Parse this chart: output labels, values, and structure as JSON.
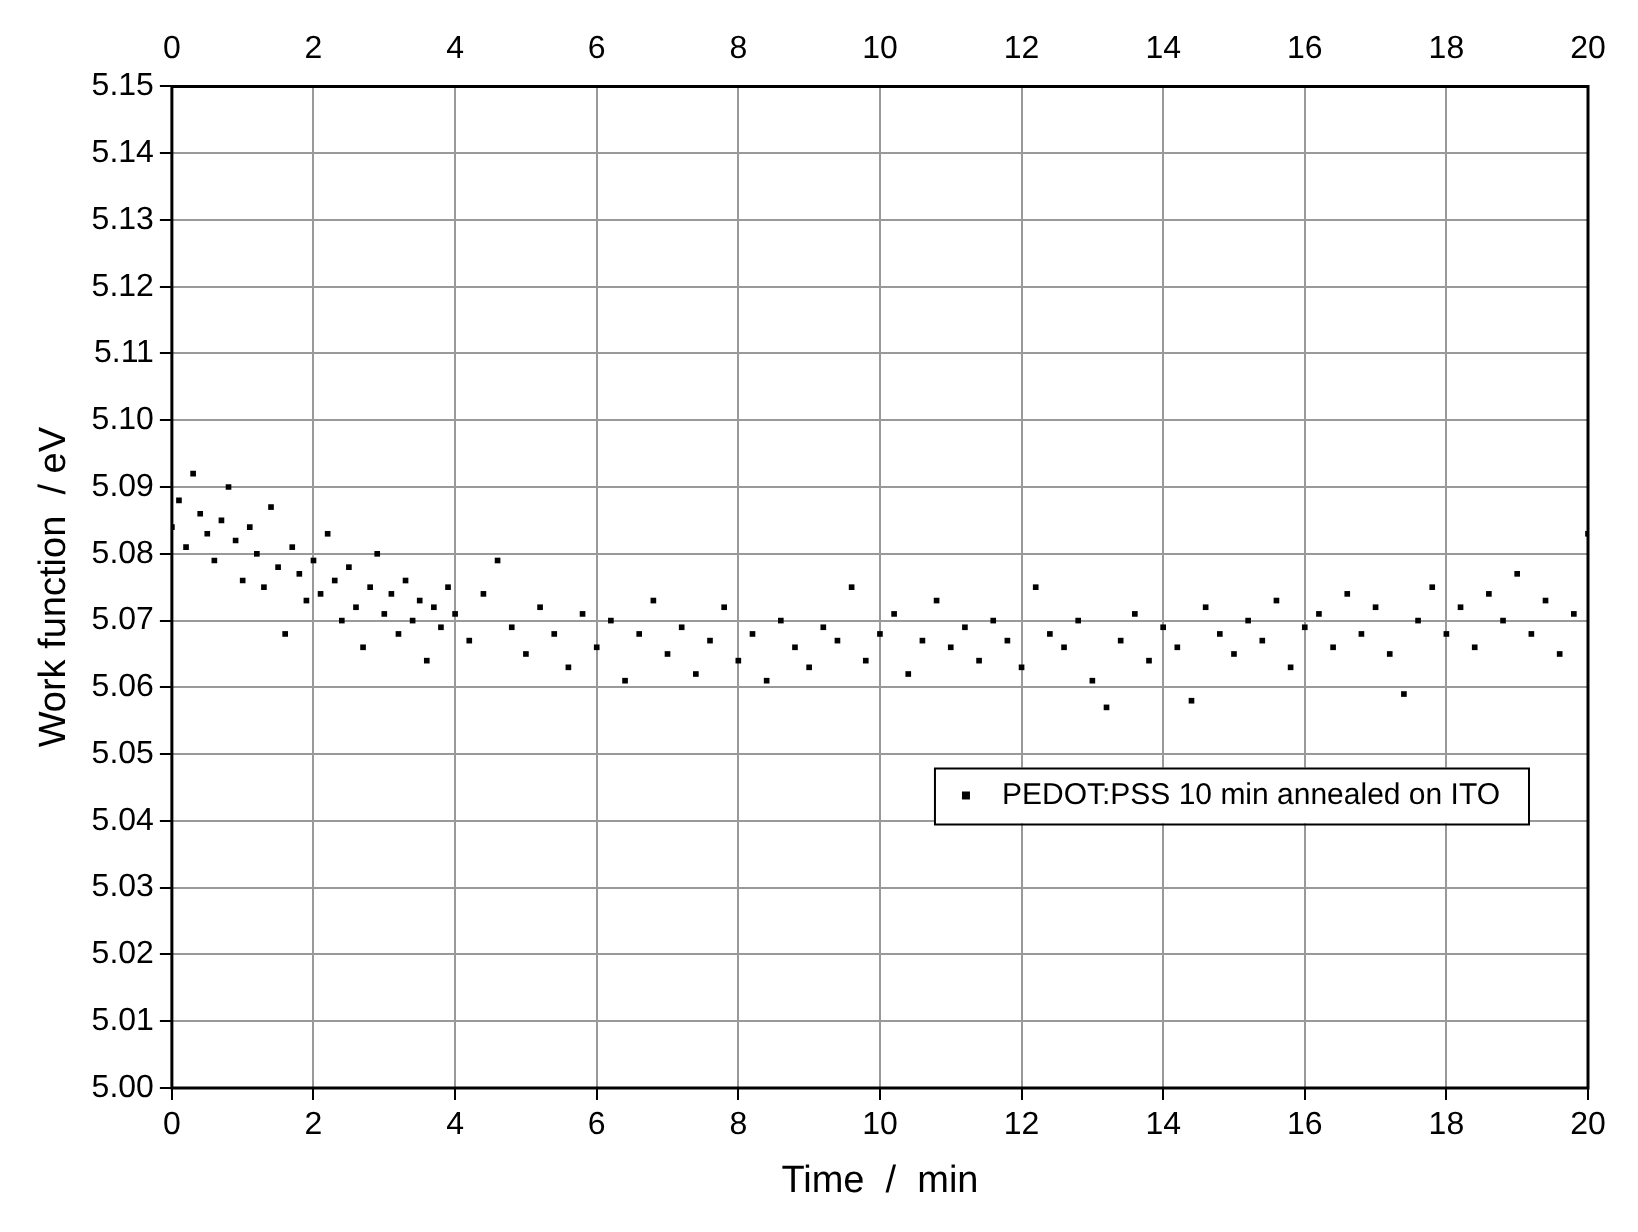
{
  "chart_data": {
    "type": "scatter",
    "xlabel": "Time  /  min",
    "ylabel": "Work function  / eV",
    "xlim": [
      0,
      20
    ],
    "xticks": [
      0,
      2,
      4,
      6,
      8,
      10,
      12,
      14,
      16,
      18,
      20
    ],
    "x2lim": [
      0,
      20
    ],
    "x2ticks": [
      0,
      2,
      4,
      6,
      8,
      10,
      12,
      14,
      16,
      18,
      20
    ],
    "ylim": [
      5.0,
      5.15
    ],
    "yticks": [
      {
        "value": 5.0,
        "label": "5.00"
      },
      {
        "value": 5.01,
        "label": "5.01"
      },
      {
        "value": 5.02,
        "label": "5.02"
      },
      {
        "value": 5.03,
        "label": "5.03"
      },
      {
        "value": 5.04,
        "label": "5.04"
      },
      {
        "value": 5.05,
        "label": "5.05"
      },
      {
        "value": 5.06,
        "label": "5.06"
      },
      {
        "value": 5.07,
        "label": "5.07"
      },
      {
        "value": 5.08,
        "label": "5.08"
      },
      {
        "value": 5.09,
        "label": "5.09"
      },
      {
        "value": 5.1,
        "label": "5.10"
      },
      {
        "value": 5.11,
        "label": "5.11"
      },
      {
        "value": 5.12,
        "label": "5.12"
      },
      {
        "value": 5.13,
        "label": "5.13"
      },
      {
        "value": 5.14,
        "label": "5.14"
      },
      {
        "value": 5.15,
        "label": "5.15"
      }
    ],
    "grid": true,
    "legend": "right",
    "marker": "square",
    "series": [
      {
        "name": "PEDOT:PSS 10 min annealed on ITO",
        "color": "#000000",
        "x": [
          0,
          0.1,
          0.2,
          0.3,
          0.4,
          0.5,
          0.6,
          0.7,
          0.8,
          0.9,
          1.0,
          1.1,
          1.2,
          1.3,
          1.4,
          1.5,
          1.6,
          1.7,
          1.8,
          1.9,
          2.0,
          2.1,
          2.2,
          2.3,
          2.4,
          2.5,
          2.6,
          2.7,
          2.8,
          2.9,
          3.0,
          3.1,
          3.2,
          3.3,
          3.4,
          3.5,
          3.6,
          3.7,
          3.8,
          3.9,
          4.0,
          4.2,
          4.4,
          4.6,
          4.8,
          5.0,
          5.2,
          5.4,
          5.6,
          5.8,
          6.0,
          6.2,
          6.4,
          6.6,
          6.8,
          7.0,
          7.2,
          7.4,
          7.6,
          7.8,
          8.0,
          8.2,
          8.4,
          8.6,
          8.8,
          9.0,
          9.2,
          9.4,
          9.6,
          9.8,
          10.0,
          10.2,
          10.4,
          10.6,
          10.8,
          11.0,
          11.2,
          11.4,
          11.6,
          11.8,
          12.0,
          12.2,
          12.4,
          12.6,
          12.8,
          13.0,
          13.2,
          13.4,
          13.6,
          13.8,
          14.0,
          14.2,
          14.4,
          14.6,
          14.8,
          15.0,
          15.2,
          15.4,
          15.6,
          15.8,
          16.0,
          16.2,
          16.4,
          16.6,
          16.8,
          17.0,
          17.2,
          17.4,
          17.6,
          17.8,
          18.0,
          18.2,
          18.4,
          18.6,
          18.8,
          19.0,
          19.2,
          19.4,
          19.6,
          19.8,
          20.0
        ],
        "values": [
          5.084,
          5.088,
          5.081,
          5.092,
          5.086,
          5.083,
          5.079,
          5.085,
          5.09,
          5.082,
          5.076,
          5.084,
          5.08,
          5.075,
          5.087,
          5.078,
          5.068,
          5.081,
          5.077,
          5.073,
          5.079,
          5.074,
          5.083,
          5.076,
          5.07,
          5.078,
          5.072,
          5.066,
          5.075,
          5.08,
          5.071,
          5.074,
          5.068,
          5.076,
          5.07,
          5.073,
          5.064,
          5.072,
          5.069,
          5.075,
          5.071,
          5.067,
          5.074,
          5.079,
          5.069,
          5.065,
          5.072,
          5.068,
          5.063,
          5.071,
          5.066,
          5.07,
          5.061,
          5.068,
          5.073,
          5.065,
          5.069,
          5.062,
          5.067,
          5.072,
          5.064,
          5.068,
          5.061,
          5.07,
          5.066,
          5.063,
          5.069,
          5.067,
          5.075,
          5.064,
          5.068,
          5.071,
          5.062,
          5.067,
          5.073,
          5.066,
          5.069,
          5.064,
          5.07,
          5.067,
          5.063,
          5.075,
          5.068,
          5.066,
          5.07,
          5.061,
          5.057,
          5.067,
          5.071,
          5.064,
          5.069,
          5.066,
          5.058,
          5.072,
          5.068,
          5.065,
          5.07,
          5.067,
          5.073,
          5.063,
          5.069,
          5.071,
          5.066,
          5.074,
          5.068,
          5.072,
          5.065,
          5.059,
          5.07,
          5.075,
          5.068,
          5.072,
          5.066,
          5.074,
          5.07,
          5.077,
          5.068,
          5.073,
          5.065,
          5.071,
          5.083
        ]
      }
    ]
  }
}
